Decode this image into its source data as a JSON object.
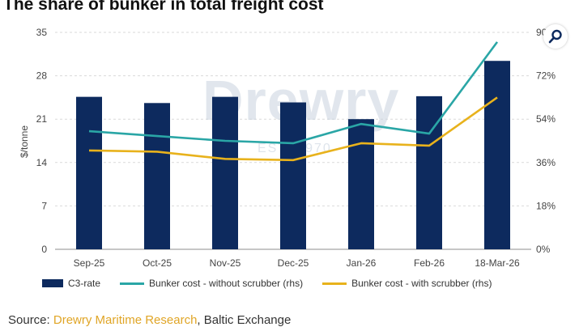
{
  "title": "The share of bunker in total freight cost",
  "watermark": {
    "brand": "Drewry",
    "est": "EST. 1970"
  },
  "source": {
    "prefix": "Source: ",
    "highlight": "Drewry Maritime Research",
    "rest": ", Baltic Exchange"
  },
  "zoom": {
    "icon": "magnifier-icon"
  },
  "chart_data": {
    "type": "bar",
    "title": "The share of bunker in total freight cost",
    "categories": [
      "Sep-25",
      "Oct-25",
      "Nov-25",
      "Dec-25",
      "Jan-26",
      "Feb-26",
      "18-Mar-26"
    ],
    "ylabel": "$/tonne",
    "ylim": [
      0,
      35
    ],
    "yticks": [
      0,
      7,
      14,
      21,
      28,
      35
    ],
    "y2lim": [
      0,
      90
    ],
    "y2ticks": [
      "0%",
      "18%",
      "36%",
      "54%",
      "72%",
      "90%"
    ],
    "y2ticks_values": [
      0,
      18,
      36,
      54,
      72,
      90
    ],
    "grid": true,
    "legend_position": "bottom",
    "series": [
      {
        "name": "C3-rate",
        "type": "bar",
        "axis": "left",
        "color": "#0d2a5e",
        "values": [
          24.6,
          23.6,
          24.6,
          23.7,
          21.0,
          24.7,
          30.4
        ]
      },
      {
        "name": "Bunker cost - without scrubber (rhs)",
        "type": "line",
        "axis": "right",
        "color": "#2aa6a6",
        "values": [
          49,
          47,
          45,
          44,
          52,
          48,
          86
        ]
      },
      {
        "name": "Bunker cost - with scrubber (rhs)",
        "type": "line",
        "axis": "right",
        "color": "#e8b21c",
        "values": [
          41,
          40.5,
          37.5,
          37,
          44,
          43,
          63
        ]
      }
    ]
  }
}
